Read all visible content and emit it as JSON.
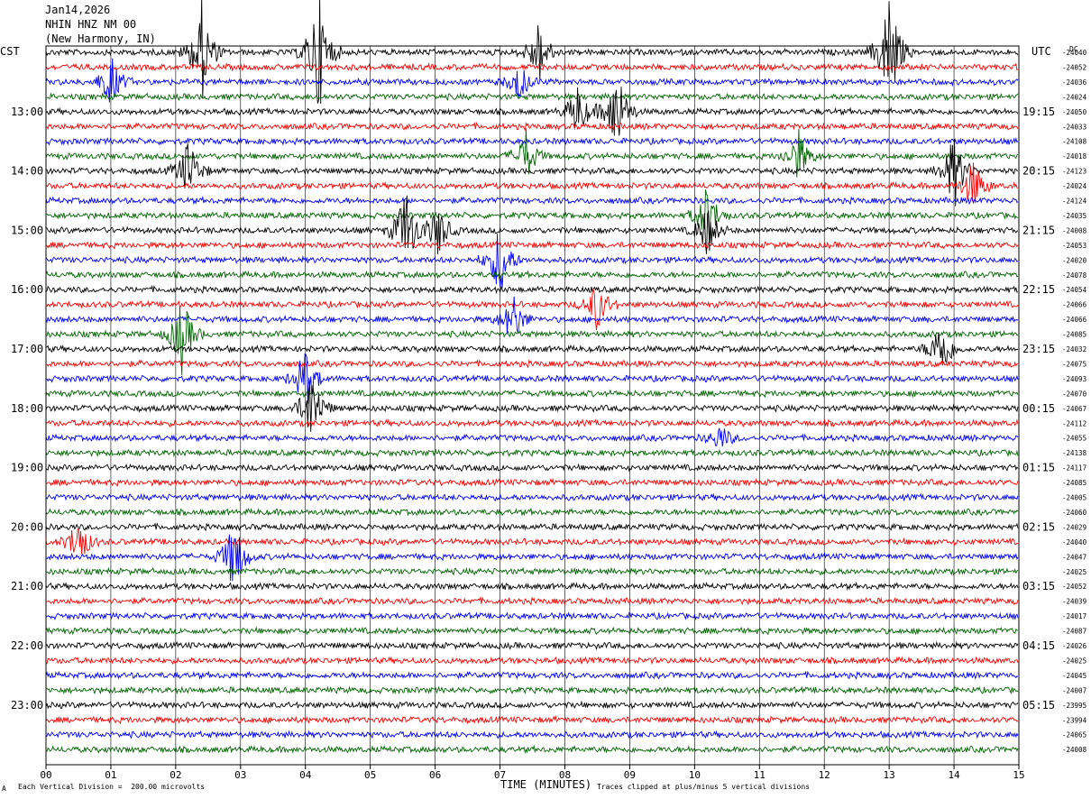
{
  "header": {
    "date": "Jan14,2026",
    "station": "NHIN HNZ NM 00",
    "location": "(New Harmony, IN)"
  },
  "left_zone": "CST",
  "right_zone": "UTC",
  "corner_label": "DC",
  "footer": {
    "scale_text": "Each Vertical Division =  200.00 microvolts",
    "clip_text": "Traces clipped at plus/minus 5 vertical divisions",
    "logo_mark": "A"
  },
  "colors": {
    "trace_cycle": [
      "#000000",
      "#ff0000",
      "#0000ff",
      "#006400"
    ],
    "grid": "#000000"
  },
  "chart_data": {
    "type": "line",
    "title": "",
    "xlabel": "TIME (MINUTES)",
    "ylabel": "",
    "xlim": [
      0,
      15
    ],
    "x_ticks": [
      "00",
      "01",
      "02",
      "03",
      "04",
      "05",
      "06",
      "07",
      "08",
      "09",
      "10",
      "11",
      "12",
      "13",
      "14",
      "15"
    ],
    "left_hour_labels": [
      "13:00",
      "14:00",
      "15:00",
      "16:00",
      "17:00",
      "18:00",
      "19:00",
      "20:00",
      "21:00",
      "22:00",
      "23:00"
    ],
    "right_hour_labels": [
      "19:15",
      "20:15",
      "21:15",
      "22:15",
      "23:15",
      "00:15",
      "01:15",
      "02:15",
      "03:15",
      "04:15",
      "05:15"
    ],
    "trace_count": 48,
    "right_dc_values": [
      "-24040",
      "-24052",
      "-24036",
      "-24024",
      "-24050",
      "-24033",
      "-24108",
      "-24018",
      "-24123",
      "-24024",
      "-24124",
      "-24035",
      "-24008",
      "-24053",
      "-24020",
      "-24078",
      "-24054",
      "-24066",
      "-24066",
      "-24085",
      "-24032",
      "-24075",
      "-24093",
      "-24070",
      "-24067",
      "-24112",
      "-24055",
      "-24138",
      "-24117",
      "-24085",
      "-24005",
      "-24060",
      "-24029",
      "-24040",
      "-24047",
      "-24025",
      "-24052",
      "-24039",
      "-24017",
      "-24087",
      "-24026",
      "-24025",
      "-24045",
      "-24007",
      "-23995",
      "-23994",
      "-24065",
      "-24008"
    ],
    "events": [
      {
        "trace": 0,
        "minute": 2.4,
        "amp": 4
      },
      {
        "trace": 0,
        "minute": 4.2,
        "amp": 5
      },
      {
        "trace": 0,
        "minute": 7.6,
        "amp": 2.5
      },
      {
        "trace": 0,
        "minute": 13.0,
        "amp": 5
      },
      {
        "trace": 2,
        "minute": 1.0,
        "amp": 2
      },
      {
        "trace": 2,
        "minute": 7.3,
        "amp": 1.5
      },
      {
        "trace": 4,
        "minute": 8.8,
        "amp": 3.5
      },
      {
        "trace": 4,
        "minute": 8.2,
        "amp": 2
      },
      {
        "trace": 7,
        "minute": 7.4,
        "amp": 2
      },
      {
        "trace": 7,
        "minute": 11.6,
        "amp": 2
      },
      {
        "trace": 8,
        "minute": 2.2,
        "amp": 2.5
      },
      {
        "trace": 8,
        "minute": 14.0,
        "amp": 3
      },
      {
        "trace": 9,
        "minute": 14.3,
        "amp": 2
      },
      {
        "trace": 11,
        "minute": 10.2,
        "amp": 2.5
      },
      {
        "trace": 12,
        "minute": 5.55,
        "amp": 3.5
      },
      {
        "trace": 12,
        "minute": 6.05,
        "amp": 2
      },
      {
        "trace": 12,
        "minute": 10.2,
        "amp": 2
      },
      {
        "trace": 14,
        "minute": 7.0,
        "amp": 3
      },
      {
        "trace": 17,
        "minute": 8.5,
        "amp": 2
      },
      {
        "trace": 18,
        "minute": 7.2,
        "amp": 2
      },
      {
        "trace": 19,
        "minute": 2.1,
        "amp": 3
      },
      {
        "trace": 20,
        "minute": 13.8,
        "amp": 2.5
      },
      {
        "trace": 22,
        "minute": 4.0,
        "amp": 2.5
      },
      {
        "trace": 24,
        "minute": 4.1,
        "amp": 3
      },
      {
        "trace": 33,
        "minute": 0.5,
        "amp": 2
      },
      {
        "trace": 34,
        "minute": 2.9,
        "amp": 3
      },
      {
        "trace": 26,
        "minute": 10.4,
        "amp": 1
      }
    ]
  }
}
